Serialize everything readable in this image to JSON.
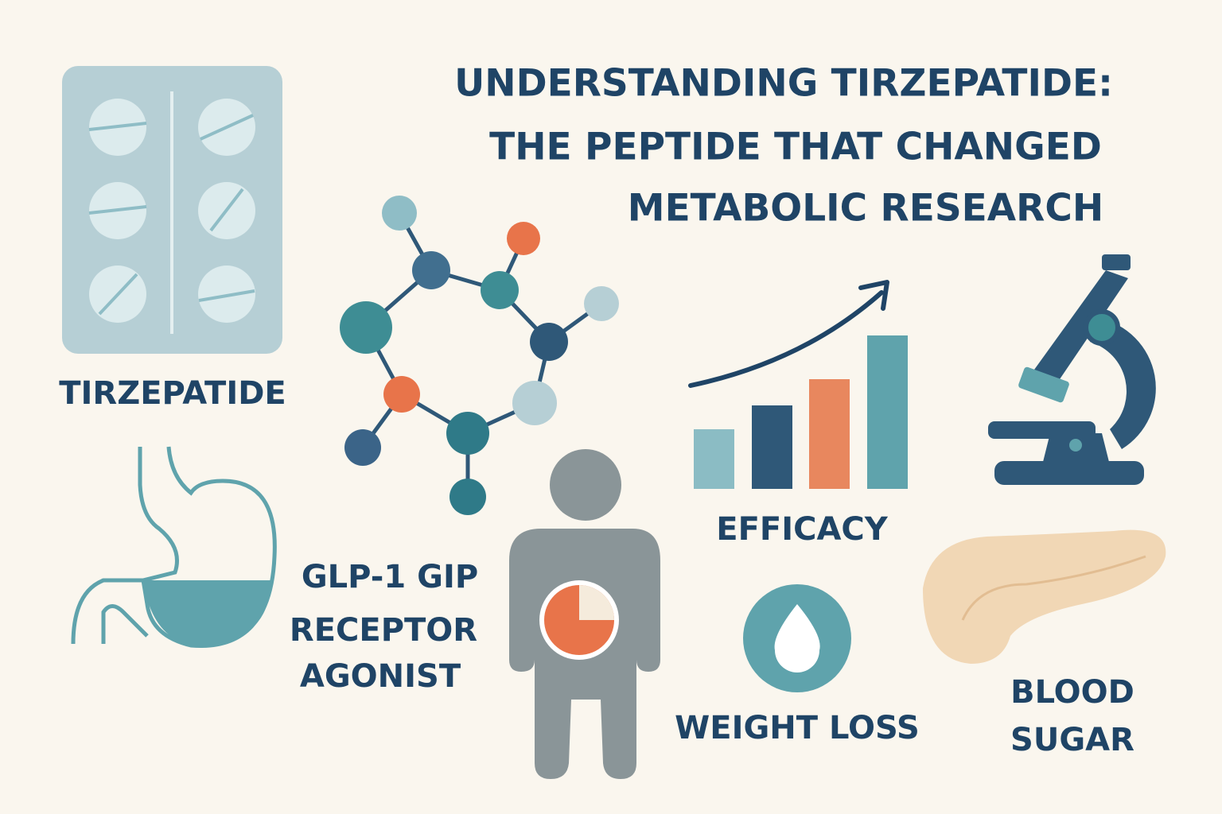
{
  "title": {
    "lines": [
      "UNDERSTANDING TIRZEPATIDE:",
      "THE PEPTIDE THAT CHANGED",
      "METABOLIC RESEARCH"
    ]
  },
  "labels": {
    "drug": "TIRZEPATIDE",
    "mechanism": [
      "GLP-1 GIP",
      "RECEPTOR",
      "AGONIST"
    ],
    "efficacy": "EFFICACY",
    "weight_loss": "WEIGHT LOSS",
    "blood_sugar": [
      "BLOOD",
      "SUGAR"
    ]
  }
}
